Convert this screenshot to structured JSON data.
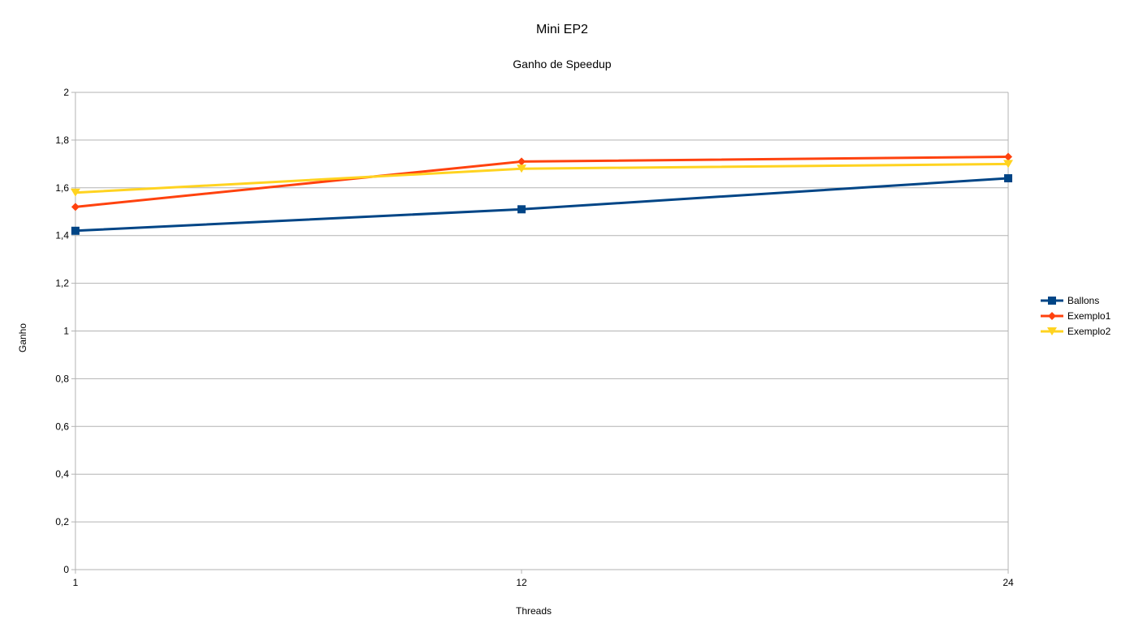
{
  "chart_data": {
    "type": "line",
    "title": "Mini EP2",
    "subtitle": "Ganho de Speedup",
    "xlabel": "Threads",
    "ylabel": "Ganho",
    "x": [
      1,
      12,
      24
    ],
    "x_tick_labels": [
      "1",
      "12",
      "24"
    ],
    "ylim": [
      0,
      2
    ],
    "y_ticks": [
      0,
      0.2,
      0.4,
      0.6,
      0.8,
      1,
      1.2,
      1.4,
      1.6,
      1.8,
      2
    ],
    "y_tick_labels": [
      "0",
      "0,2",
      "0,4",
      "0,6",
      "0,8",
      "1",
      "1,2",
      "1,4",
      "1,6",
      "1,8",
      "2"
    ],
    "grid": "horizontal",
    "legend_position": "right",
    "series": [
      {
        "name": "Ballons",
        "values": [
          1.42,
          1.51,
          1.64
        ],
        "color": "#004586",
        "marker": "square"
      },
      {
        "name": "Exemplo1",
        "values": [
          1.52,
          1.71,
          1.73
        ],
        "color": "#ff420e",
        "marker": "diamond"
      },
      {
        "name": "Exemplo2",
        "values": [
          1.58,
          1.68,
          1.7
        ],
        "color": "#ffd320",
        "marker": "triangle-down"
      }
    ]
  }
}
